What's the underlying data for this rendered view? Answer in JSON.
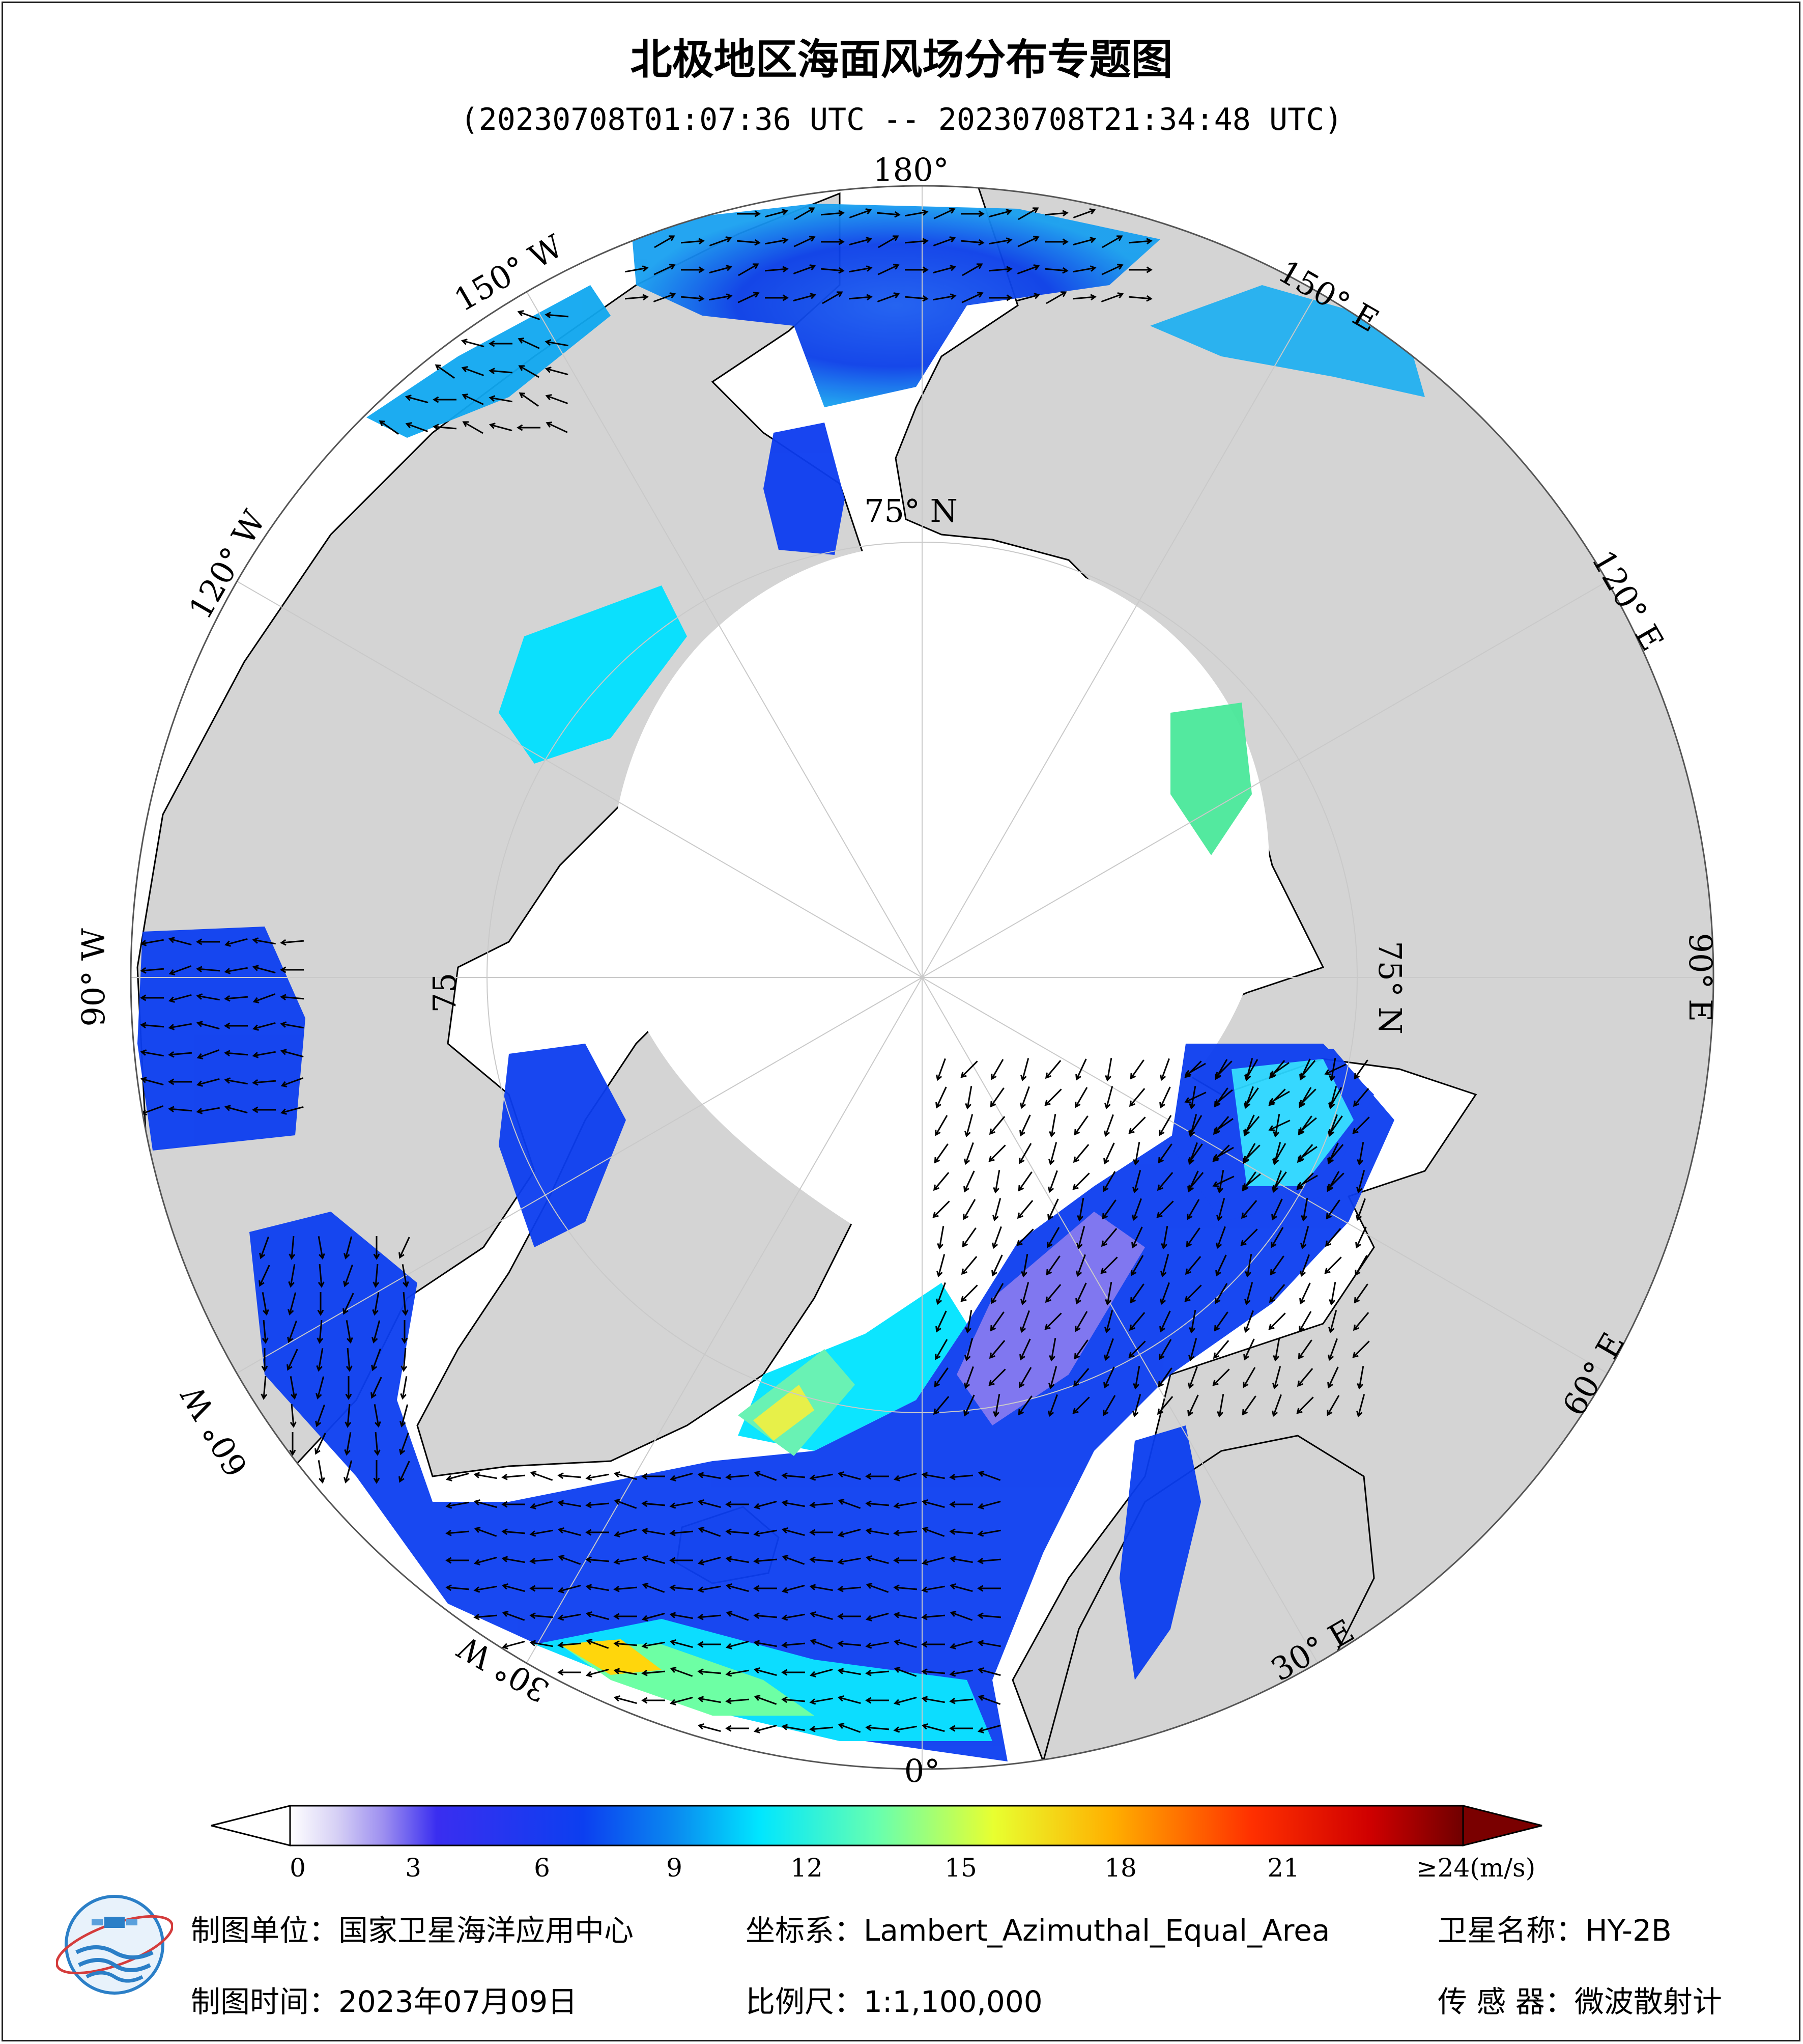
{
  "title": "北极地区海面风场分布专题图",
  "subtitle": "(20230708T01:07:36 UTC -- 20230708T21:34:48 UTC)",
  "graticule": {
    "lon_labels": [
      "180°",
      "150° E",
      "120° E",
      "90° E",
      "60° E",
      "30° E",
      "0°",
      "30° W",
      "60° W",
      "90° W",
      "120° W",
      "150° W"
    ],
    "lat_label": "75° N",
    "lat_label_side": "75° N",
    "lat_label_left": "75"
  },
  "colorbar": {
    "ticks": [
      "0",
      "3",
      "6",
      "9",
      "12",
      "15",
      "18",
      "21",
      "≥24(m/s)"
    ],
    "tick_values": [
      0,
      3,
      6,
      9,
      12,
      15,
      18,
      21,
      24
    ],
    "min": 0,
    "max": 24,
    "unit": "m/s",
    "extend": "both"
  },
  "footer": {
    "unit_label": "制图单位：",
    "unit_value": "国家卫星海洋应用中心",
    "time_label": "制图时间：",
    "time_value": "2023年07月09日",
    "crs_label": "坐标系：",
    "crs_value": "Lambert_Azimuthal_Equal_Area",
    "scale_label": "比例尺：",
    "scale_value": "1:1,100,000",
    "satellite_label": "卫星名称：",
    "satellite_value": "HY-2B",
    "sensor_label": "传 感 器：",
    "sensor_value": "微波散射计"
  },
  "colors": {
    "land": "#d4d4d4",
    "ice": "#ffffff",
    "background": "#ffffff",
    "wind_low": "#2323f0",
    "wind_mid": "#00e8ff",
    "wind_high": "#ffe000"
  }
}
